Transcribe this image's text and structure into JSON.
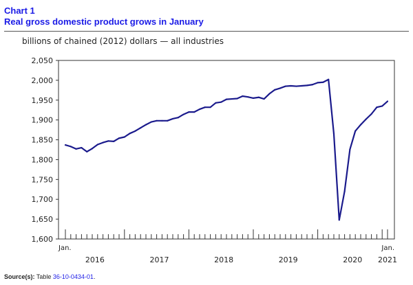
{
  "header": {
    "chart_number": "Chart 1",
    "chart_title": "Real gross domestic product grows in January"
  },
  "units_label": "billions of chained (2012) dollars — all industries",
  "source": {
    "label": "Source(s):",
    "text": "Table",
    "link_text": "36-10-0434-01",
    "suffix": "."
  },
  "colors": {
    "title": "#1a1ae6",
    "line": "#1a1a8c",
    "axis": "#333333"
  },
  "chart_data": {
    "type": "line",
    "title": "Real gross domestic product grows in January",
    "ylabel": "billions of chained (2012) dollars — all industries",
    "xlabel": "",
    "ylim": [
      1600,
      2050
    ],
    "yticks": [
      1600,
      1650,
      1700,
      1750,
      1800,
      1850,
      1900,
      1950,
      2000,
      2050
    ],
    "ytick_labels": [
      "1,600",
      "1,650",
      "1,700",
      "1,750",
      "1,800",
      "1,850",
      "1,900",
      "1,950",
      "2,000",
      "2,050"
    ],
    "grid": false,
    "x_first_label": "Jan.",
    "x_last_label": "Jan.",
    "year_labels": [
      {
        "label": "2016",
        "start_index": 0
      },
      {
        "label": "2017",
        "start_index": 12
      },
      {
        "label": "2018",
        "start_index": 24
      },
      {
        "label": "2019",
        "start_index": 36
      },
      {
        "label": "2020",
        "start_index": 48
      },
      {
        "label": "2021",
        "start_index": 60
      }
    ],
    "series": [
      {
        "name": "all industries",
        "x": [
          "2016-01",
          "2016-02",
          "2016-03",
          "2016-04",
          "2016-05",
          "2016-06",
          "2016-07",
          "2016-08",
          "2016-09",
          "2016-10",
          "2016-11",
          "2016-12",
          "2017-01",
          "2017-02",
          "2017-03",
          "2017-04",
          "2017-05",
          "2017-06",
          "2017-07",
          "2017-08",
          "2017-09",
          "2017-10",
          "2017-11",
          "2017-12",
          "2018-01",
          "2018-02",
          "2018-03",
          "2018-04",
          "2018-05",
          "2018-06",
          "2018-07",
          "2018-08",
          "2018-09",
          "2018-10",
          "2018-11",
          "2018-12",
          "2019-01",
          "2019-02",
          "2019-03",
          "2019-04",
          "2019-05",
          "2019-06",
          "2019-07",
          "2019-08",
          "2019-09",
          "2019-10",
          "2019-11",
          "2019-12",
          "2020-01",
          "2020-02",
          "2020-03",
          "2020-04",
          "2020-05",
          "2020-06",
          "2020-07",
          "2020-08",
          "2020-09",
          "2020-10",
          "2020-11",
          "2020-12",
          "2021-01"
        ],
        "values": [
          1837,
          1833,
          1827,
          1830,
          1820,
          1828,
          1838,
          1843,
          1847,
          1846,
          1854,
          1857,
          1866,
          1872,
          1880,
          1888,
          1895,
          1898,
          1898,
          1898,
          1903,
          1906,
          1914,
          1920,
          1920,
          1927,
          1932,
          1932,
          1943,
          1945,
          1952,
          1953,
          1954,
          1960,
          1958,
          1955,
          1957,
          1953,
          1966,
          1976,
          1980,
          1985,
          1986,
          1985,
          1986,
          1987,
          1989,
          1994,
          1995,
          2002,
          1865,
          1648,
          1720,
          1826,
          1872,
          1888,
          1902,
          1915,
          1932,
          1935,
          1947
        ]
      }
    ]
  }
}
